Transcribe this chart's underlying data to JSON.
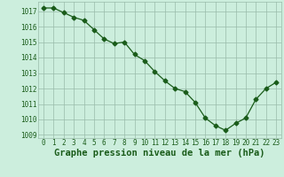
{
  "x": [
    0,
    1,
    2,
    3,
    4,
    5,
    6,
    7,
    8,
    9,
    10,
    11,
    12,
    13,
    14,
    15,
    16,
    17,
    18,
    19,
    20,
    21,
    22,
    23
  ],
  "y": [
    1017.2,
    1017.2,
    1016.9,
    1016.6,
    1016.4,
    1015.8,
    1015.2,
    1014.9,
    1015.0,
    1014.2,
    1013.8,
    1013.1,
    1012.5,
    1012.0,
    1011.8,
    1011.1,
    1010.1,
    1009.6,
    1009.3,
    1009.75,
    1010.1,
    1011.3,
    1012.0,
    1012.4
  ],
  "line_color": "#1a5c1a",
  "marker": "D",
  "marker_size": 2.5,
  "bg_color": "#cceedd",
  "grid_color": "#99bbaa",
  "xlabel": "Graphe pression niveau de la mer (hPa)",
  "xlabel_fontsize": 7.5,
  "ylim": [
    1008.8,
    1017.6
  ],
  "yticks": [
    1009,
    1010,
    1011,
    1012,
    1013,
    1014,
    1015,
    1016,
    1017
  ],
  "xticks": [
    0,
    1,
    2,
    3,
    4,
    5,
    6,
    7,
    8,
    9,
    10,
    11,
    12,
    13,
    14,
    15,
    16,
    17,
    18,
    19,
    20,
    21,
    22,
    23
  ],
  "tick_fontsize": 5.5,
  "title_color": "#1a5c1a"
}
